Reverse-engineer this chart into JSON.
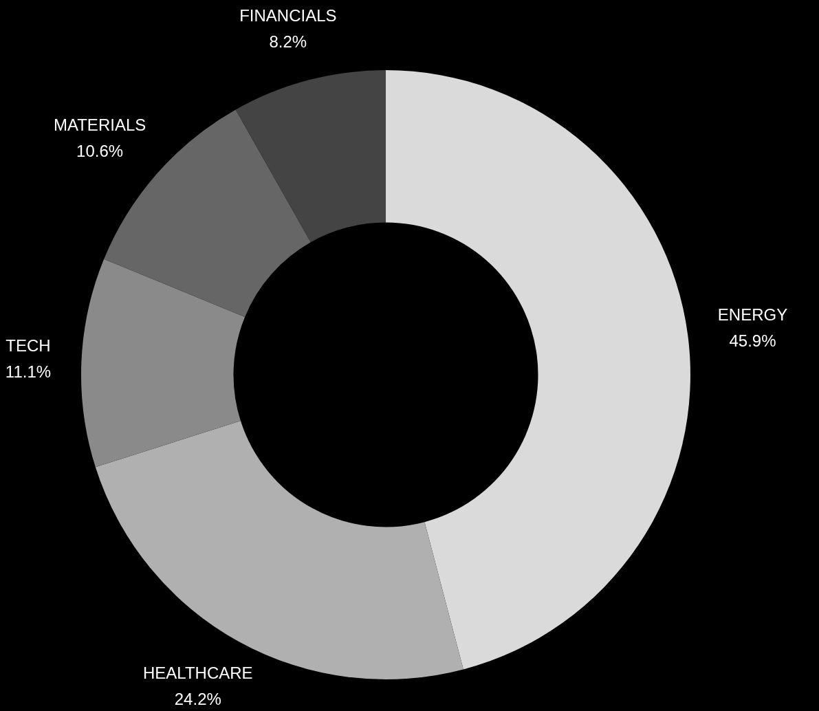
{
  "chart_data": {
    "type": "donut",
    "categories": [
      "ENERGY",
      "HEALTHCARE",
      "TECH",
      "MATERIALS",
      "FINANCIALS"
    ],
    "values": [
      45.9,
      24.2,
      11.1,
      10.6,
      8.2
    ],
    "colors": [
      "#dadada",
      "#b0b0b0",
      "#8a8a8a",
      "#666666",
      "#444444"
    ],
    "value_labels": [
      "45.9%",
      "24.2%",
      "11.1%",
      "10.6%",
      "8.2%"
    ],
    "legend": false
  }
}
